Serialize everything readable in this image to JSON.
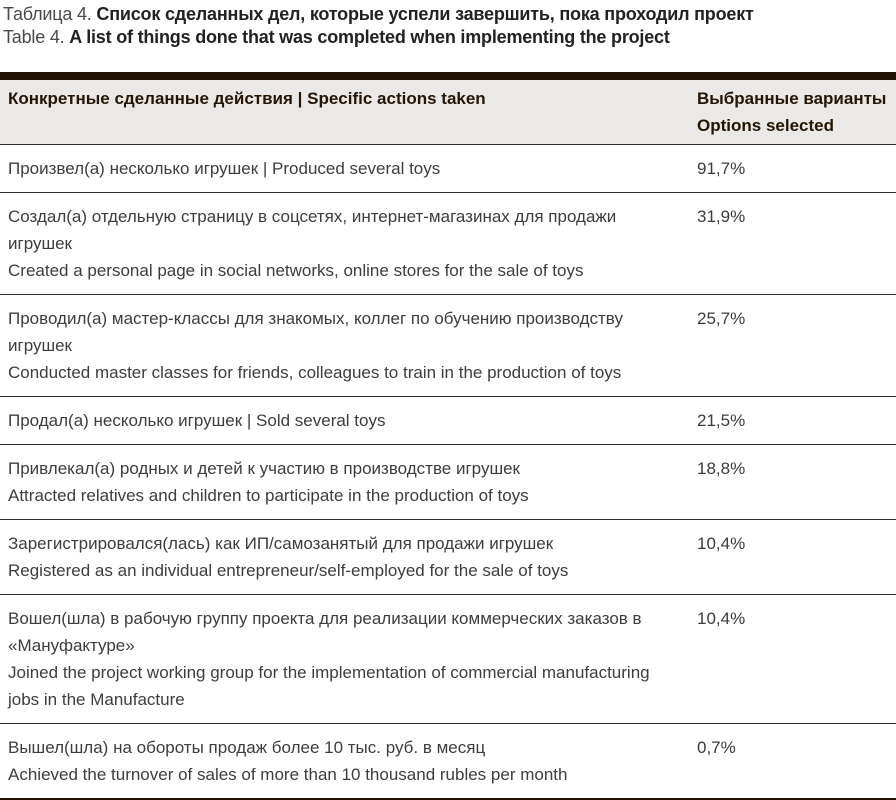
{
  "caption": {
    "ru_prefix": "Таблица 4.",
    "ru_bold": "Список сделанных дел, которые успели завершить, пока проходил проект",
    "en_prefix": "Table 4.",
    "en_bold": "A list of things done that was completed when implementing the project"
  },
  "table": {
    "header": {
      "actions_col": "Конкретные сделанные действия | Specific actions taken",
      "options_col_line1": "Выбранные варианты",
      "options_col_line2": "Options selected"
    },
    "rows": [
      {
        "lines": [
          "Произвел(а) несколько игрушек | Produced several toys"
        ],
        "value": "91,7%"
      },
      {
        "lines": [
          "Создал(а) отдельную страницу в соцсетях, интернет-магазинах для продажи игрушек",
          "Created a personal page in social networks, online stores for the sale of toys"
        ],
        "value": "31,9%"
      },
      {
        "lines": [
          "Проводил(а) мастер-классы для знакомых, коллег по обучению производству игрушек",
          "Conducted master classes for friends, colleagues to train in the production of toys"
        ],
        "value": "25,7%"
      },
      {
        "lines": [
          "Продал(а) несколько игрушек | Sold several toys"
        ],
        "value": "21,5%"
      },
      {
        "lines": [
          "Привлекал(а) родных и детей к участию в производстве игрушек",
          "Attracted relatives and children to participate in the production of toys"
        ],
        "value": "18,8%"
      },
      {
        "lines": [
          "Зарегистрировался(лась) как ИП/самозанятый для продажи игрушек",
          "Registered as an individual entrepreneur/self-employed for the sale of toys"
        ],
        "value": "10,4%"
      },
      {
        "lines": [
          "Вошел(шла) в рабочую группу проекта для реализации коммерческих заказов в «Мануфактуре»",
          "Joined the project working group for the implementation of commercial manufacturing jobs in the Manufacture"
        ],
        "value": "10,4%"
      },
      {
        "lines": [
          "Вышел(шла) на обороты продаж более 10 тыс. руб. в месяц",
          "Achieved the turnover of sales of more than 10 thousand rubles per month"
        ],
        "value": "0,7%"
      }
    ]
  },
  "colors": {
    "accent_bar": "#221204",
    "header_background": "#eae9e7",
    "header_text": "#241505",
    "body_text": "#3d3d3d",
    "row_divider": "#2f2f2f"
  }
}
